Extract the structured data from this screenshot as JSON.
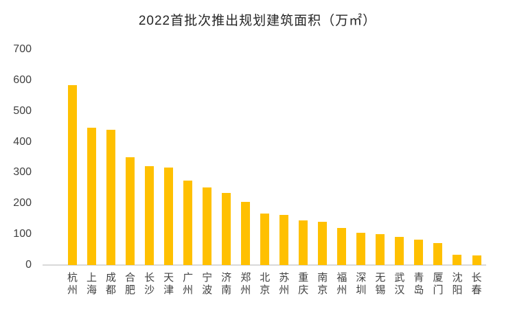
{
  "title": "2022首批次推出规划建筑面积（万㎡）",
  "chart_data": {
    "type": "bar",
    "title": "2022首批次推出规划建筑面积（万㎡）",
    "categories": [
      "杭州",
      "上海",
      "成都",
      "合肥",
      "长沙",
      "天津",
      "广州",
      "宁波",
      "济南",
      "郑州",
      "北京",
      "苏州",
      "重庆",
      "南京",
      "福州",
      "深圳",
      "无锡",
      "武汉",
      "青岛",
      "厦门",
      "沈阳",
      "长春"
    ],
    "values": [
      583,
      446,
      439,
      351,
      322,
      316,
      274,
      253,
      234,
      205,
      167,
      162,
      146,
      141,
      120,
      104,
      100,
      91,
      83,
      71,
      33,
      31
    ],
    "xlabel": "",
    "ylabel": "",
    "ylim": [
      0,
      700
    ],
    "ytick_step": 100,
    "ytick_labels": [
      "0",
      "100",
      "200",
      "300",
      "400",
      "500",
      "600",
      "700"
    ],
    "grid": false,
    "legend": "none",
    "bar_color": "#FFC000",
    "axis_line_color": "#D9D9D9",
    "text_color": "#404040"
  }
}
